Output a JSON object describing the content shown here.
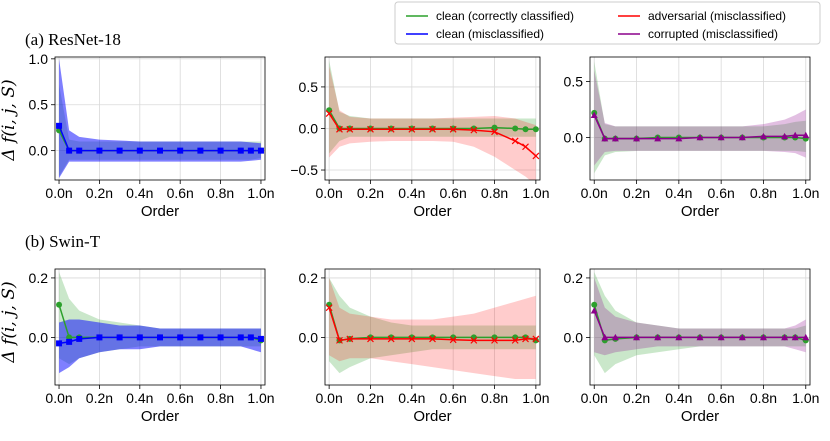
{
  "legend": {
    "entries": [
      {
        "label": "clean (correctly classified)",
        "color": "#2ca02c"
      },
      {
        "label": "adversarial (misclassified)",
        "color": "#ff0000"
      },
      {
        "label": "clean (misclassified)",
        "color": "#0000ff"
      },
      {
        "label": "corrupted (misclassified)",
        "color": "#8b008b"
      }
    ]
  },
  "rows": [
    {
      "title": "(a) ResNet-18"
    },
    {
      "title": "(b) Swin-T"
    }
  ],
  "ylabel": "Δ f(i, j, S)",
  "xlabel": "Order",
  "colors": {
    "clean_correct": "#2ca02c",
    "adversarial": "#ff0000",
    "clean_mis": "#0000ff",
    "corrupted": "#8b008b"
  },
  "chart_data": [
    {
      "type": "line",
      "id": "a-blue",
      "xlabel": "Order",
      "ylabel": "Δ f(i, j, S)",
      "xlim": [
        -0.02,
        1.02
      ],
      "ylim": [
        -0.32,
        1.02
      ],
      "xticks": [
        {
          "v": 0,
          "label": "0.0n"
        },
        {
          "v": 0.2,
          "label": "0.2n"
        },
        {
          "v": 0.4,
          "label": "0.4n"
        },
        {
          "v": 0.6,
          "label": "0.6n"
        },
        {
          "v": 0.8,
          "label": "0.8n"
        },
        {
          "v": 1.0,
          "label": "1.0n"
        }
      ],
      "yticks": [
        {
          "v": 0,
          "label": "0.0"
        },
        {
          "v": 0.5,
          "label": "0.5"
        },
        {
          "v": 1.0,
          "label": "1.0"
        }
      ],
      "x": [
        0,
        0.05,
        0.1,
        0.2,
        0.3,
        0.4,
        0.5,
        0.6,
        0.7,
        0.8,
        0.9,
        0.95,
        1.0
      ],
      "series": [
        {
          "name": "clean (correctly classified)",
          "key": "clean_correct",
          "marker": "o",
          "values": [
            0.22,
            0.0,
            0.0,
            0.0,
            0.0,
            0.0,
            0.0,
            0.0,
            0.0,
            0.0,
            0.0,
            0.0,
            0.0
          ],
          "lower": [
            -0.28,
            -0.1,
            -0.1,
            -0.1,
            -0.1,
            -0.1,
            -0.1,
            -0.1,
            -0.1,
            -0.1,
            -0.1,
            -0.1,
            -0.08
          ],
          "upper": [
            0.72,
            0.12,
            0.1,
            0.1,
            0.1,
            0.1,
            0.1,
            0.1,
            0.1,
            0.1,
            0.1,
            0.1,
            0.1
          ]
        },
        {
          "name": "clean (misclassified)",
          "key": "clean_mis",
          "marker": "s",
          "values": [
            0.27,
            0.0,
            0.0,
            0.0,
            0.0,
            0.0,
            0.0,
            0.0,
            0.0,
            0.0,
            0.0,
            0.0,
            0.0
          ],
          "lower": [
            -0.3,
            -0.12,
            -0.12,
            -0.12,
            -0.12,
            -0.12,
            -0.12,
            -0.12,
            -0.12,
            -0.12,
            -0.12,
            -0.11,
            -0.1
          ],
          "upper": [
            1.0,
            0.22,
            0.15,
            0.12,
            0.11,
            0.1,
            0.1,
            0.1,
            0.1,
            0.1,
            0.1,
            0.09,
            0.08
          ]
        }
      ]
    },
    {
      "type": "line",
      "id": "a-red",
      "xlabel": "Order",
      "xlim": [
        -0.02,
        1.02
      ],
      "ylim": [
        -0.62,
        0.86
      ],
      "xticks": [
        {
          "v": 0,
          "label": "0.0n"
        },
        {
          "v": 0.2,
          "label": "0.2n"
        },
        {
          "v": 0.4,
          "label": "0.4n"
        },
        {
          "v": 0.6,
          "label": "0.6n"
        },
        {
          "v": 0.8,
          "label": "0.8n"
        },
        {
          "v": 1.0,
          "label": "1.0n"
        }
      ],
      "yticks": [
        {
          "v": -0.5,
          "label": "−0.5"
        },
        {
          "v": 0,
          "label": "0.0"
        },
        {
          "v": 0.5,
          "label": "0.5"
        }
      ],
      "x": [
        0,
        0.05,
        0.1,
        0.2,
        0.3,
        0.4,
        0.5,
        0.6,
        0.7,
        0.8,
        0.9,
        0.95,
        1.0
      ],
      "series": [
        {
          "name": "clean (correctly classified)",
          "key": "clean_correct",
          "marker": "o",
          "values": [
            0.22,
            0.0,
            0.0,
            0.0,
            0.0,
            0.0,
            0.0,
            0.0,
            0.0,
            0.01,
            0.0,
            -0.01,
            -0.01
          ],
          "lower": [
            -0.3,
            -0.15,
            -0.1,
            -0.1,
            -0.1,
            -0.1,
            -0.1,
            -0.1,
            -0.1,
            -0.1,
            -0.1,
            -0.1,
            -0.1
          ],
          "upper": [
            0.82,
            0.2,
            0.15,
            0.12,
            0.12,
            0.12,
            0.12,
            0.12,
            0.12,
            0.12,
            0.12,
            0.12,
            0.12
          ]
        },
        {
          "name": "adversarial (misclassified)",
          "key": "adversarial",
          "marker": "x",
          "values": [
            0.18,
            -0.01,
            -0.01,
            -0.01,
            -0.01,
            -0.01,
            -0.01,
            -0.01,
            -0.02,
            -0.04,
            -0.15,
            -0.22,
            -0.33
          ],
          "lower": [
            -0.35,
            -0.22,
            -0.18,
            -0.16,
            -0.15,
            -0.15,
            -0.15,
            -0.16,
            -0.22,
            -0.34,
            -0.5,
            -0.58,
            -0.68
          ],
          "upper": [
            0.75,
            0.22,
            0.14,
            0.12,
            0.12,
            0.12,
            0.12,
            0.13,
            0.14,
            0.15,
            0.12,
            0.08,
            0.04
          ]
        }
      ]
    },
    {
      "type": "line",
      "id": "a-purple",
      "xlabel": "Order",
      "xlim": [
        -0.02,
        1.02
      ],
      "ylim": [
        -0.38,
        0.72
      ],
      "xticks": [
        {
          "v": 0,
          "label": "0.0n"
        },
        {
          "v": 0.2,
          "label": "0.2n"
        },
        {
          "v": 0.4,
          "label": "0.4n"
        },
        {
          "v": 0.6,
          "label": "0.6n"
        },
        {
          "v": 0.8,
          "label": "0.8n"
        },
        {
          "v": 1.0,
          "label": "1.0n"
        }
      ],
      "yticks": [
        {
          "v": 0,
          "label": "0.0"
        },
        {
          "v": 0.5,
          "label": "0.5"
        }
      ],
      "x": [
        0,
        0.05,
        0.1,
        0.2,
        0.3,
        0.4,
        0.5,
        0.6,
        0.7,
        0.8,
        0.9,
        0.95,
        1.0
      ],
      "series": [
        {
          "name": "clean (correctly classified)",
          "key": "clean_correct",
          "marker": "o",
          "values": [
            0.22,
            -0.01,
            -0.01,
            -0.01,
            0.0,
            0.0,
            0.0,
            0.0,
            0.0,
            0.0,
            0.0,
            0.0,
            -0.01
          ],
          "lower": [
            -0.32,
            -0.16,
            -0.13,
            -0.12,
            -0.12,
            -0.12,
            -0.12,
            -0.12,
            -0.12,
            -0.12,
            -0.12,
            -0.12,
            -0.13
          ],
          "upper": [
            0.68,
            0.12,
            0.1,
            0.1,
            0.1,
            0.1,
            0.1,
            0.1,
            0.1,
            0.1,
            0.12,
            0.14,
            0.15
          ]
        },
        {
          "name": "corrupted (misclassified)",
          "key": "corrupted",
          "marker": "^",
          "values": [
            0.2,
            -0.01,
            -0.01,
            -0.01,
            -0.01,
            -0.01,
            0.0,
            0.0,
            0.0,
            0.01,
            0.01,
            0.02,
            0.02
          ],
          "lower": [
            -0.25,
            -0.13,
            -0.12,
            -0.12,
            -0.12,
            -0.12,
            -0.12,
            -0.12,
            -0.12,
            -0.12,
            -0.13,
            -0.14,
            -0.18
          ],
          "upper": [
            0.6,
            0.13,
            0.1,
            0.1,
            0.1,
            0.1,
            0.1,
            0.1,
            0.1,
            0.12,
            0.16,
            0.2,
            0.25
          ]
        }
      ]
    },
    {
      "type": "line",
      "id": "b-blue",
      "xlabel": "Order",
      "ylabel": "Δ f(i, j, S)",
      "xlim": [
        -0.02,
        1.02
      ],
      "ylim": [
        -0.16,
        0.23
      ],
      "xticks": [
        {
          "v": 0,
          "label": "0.0n"
        },
        {
          "v": 0.2,
          "label": "0.2n"
        },
        {
          "v": 0.4,
          "label": "0.4n"
        },
        {
          "v": 0.6,
          "label": "0.6n"
        },
        {
          "v": 0.8,
          "label": "0.8n"
        },
        {
          "v": 1.0,
          "label": "1.0n"
        }
      ],
      "yticks": [
        {
          "v": 0,
          "label": "0.0"
        },
        {
          "v": 0.2,
          "label": "0.2"
        }
      ],
      "x": [
        0,
        0.05,
        0.1,
        0.2,
        0.3,
        0.4,
        0.5,
        0.6,
        0.7,
        0.8,
        0.9,
        0.95,
        1.0
      ],
      "series": [
        {
          "name": "clean (correctly classified)",
          "key": "clean_correct",
          "marker": "o",
          "values": [
            0.11,
            0.0,
            0.0,
            0.0,
            0.0,
            0.0,
            0.0,
            0.0,
            0.0,
            0.0,
            0.0,
            0.0,
            -0.01
          ],
          "lower": [
            -0.07,
            -0.09,
            -0.07,
            -0.05,
            -0.04,
            -0.03,
            -0.03,
            -0.03,
            -0.03,
            -0.03,
            -0.03,
            -0.03,
            -0.03
          ],
          "upper": [
            0.22,
            0.13,
            0.09,
            0.06,
            0.05,
            0.04,
            0.03,
            0.03,
            0.03,
            0.03,
            0.03,
            0.03,
            0.03
          ]
        },
        {
          "name": "clean (misclassified)",
          "key": "clean_mis",
          "marker": "s",
          "values": [
            -0.02,
            -0.015,
            -0.005,
            0.0,
            0.0,
            0.0,
            0.0,
            0.0,
            0.0,
            0.0,
            0.0,
            0.0,
            -0.005
          ],
          "lower": [
            -0.12,
            -0.1,
            -0.07,
            -0.05,
            -0.04,
            -0.04,
            -0.03,
            -0.03,
            -0.03,
            -0.03,
            -0.03,
            -0.04,
            -0.05
          ],
          "upper": [
            0.05,
            0.06,
            0.06,
            0.05,
            0.04,
            0.04,
            0.03,
            0.03,
            0.03,
            0.03,
            0.03,
            0.03,
            0.03
          ]
        }
      ]
    },
    {
      "type": "line",
      "id": "b-red",
      "xlabel": "Order",
      "xlim": [
        -0.02,
        1.02
      ],
      "ylim": [
        -0.16,
        0.23
      ],
      "xticks": [
        {
          "v": 0,
          "label": "0.0n"
        },
        {
          "v": 0.2,
          "label": "0.2n"
        },
        {
          "v": 0.4,
          "label": "0.4n"
        },
        {
          "v": 0.6,
          "label": "0.6n"
        },
        {
          "v": 0.8,
          "label": "0.8n"
        },
        {
          "v": 1.0,
          "label": "1.0n"
        }
      ],
      "yticks": [
        {
          "v": 0,
          "label": "0.0"
        },
        {
          "v": 0.2,
          "label": "0.2"
        }
      ],
      "x": [
        0,
        0.05,
        0.1,
        0.2,
        0.3,
        0.4,
        0.5,
        0.6,
        0.7,
        0.8,
        0.9,
        0.95,
        1.0
      ],
      "series": [
        {
          "name": "clean (correctly classified)",
          "key": "clean_correct",
          "marker": "o",
          "values": [
            0.11,
            -0.01,
            -0.005,
            0.0,
            0.0,
            0.0,
            0.0,
            0.0,
            0.0,
            0.0,
            0.0,
            0.0,
            -0.01
          ],
          "lower": [
            -0.08,
            -0.12,
            -0.1,
            -0.07,
            -0.06,
            -0.05,
            -0.04,
            -0.04,
            -0.04,
            -0.04,
            -0.04,
            -0.04,
            -0.04
          ],
          "upper": [
            0.2,
            0.14,
            0.1,
            0.07,
            0.05,
            0.04,
            0.04,
            0.04,
            0.04,
            0.04,
            0.04,
            0.04,
            0.04
          ]
        },
        {
          "name": "adversarial (misclassified)",
          "key": "adversarial",
          "marker": "x",
          "values": [
            0.1,
            -0.01,
            -0.005,
            -0.005,
            -0.005,
            -0.005,
            -0.005,
            -0.008,
            -0.01,
            -0.01,
            -0.01,
            -0.005,
            -0.005
          ],
          "lower": [
            -0.06,
            -0.08,
            -0.07,
            -0.07,
            -0.08,
            -0.09,
            -0.1,
            -0.11,
            -0.12,
            -0.13,
            -0.14,
            -0.14,
            -0.14
          ],
          "upper": [
            0.2,
            0.1,
            0.08,
            0.07,
            0.06,
            0.06,
            0.06,
            0.07,
            0.08,
            0.1,
            0.12,
            0.13,
            0.14
          ]
        }
      ]
    },
    {
      "type": "line",
      "id": "b-purple",
      "xlabel": "Order",
      "xlim": [
        -0.02,
        1.02
      ],
      "ylim": [
        -0.16,
        0.23
      ],
      "xticks": [
        {
          "v": 0,
          "label": "0.0n"
        },
        {
          "v": 0.2,
          "label": "0.2n"
        },
        {
          "v": 0.4,
          "label": "0.4n"
        },
        {
          "v": 0.6,
          "label": "0.6n"
        },
        {
          "v": 0.8,
          "label": "0.8n"
        },
        {
          "v": 1.0,
          "label": "1.0n"
        }
      ],
      "yticks": [
        {
          "v": 0,
          "label": "0.0"
        },
        {
          "v": 0.2,
          "label": "0.2"
        }
      ],
      "x": [
        0,
        0.05,
        0.1,
        0.2,
        0.3,
        0.4,
        0.5,
        0.6,
        0.7,
        0.8,
        0.9,
        0.95,
        1.0
      ],
      "series": [
        {
          "name": "clean (correctly classified)",
          "key": "clean_correct",
          "marker": "o",
          "values": [
            0.11,
            -0.01,
            -0.005,
            0.0,
            0.0,
            0.0,
            0.0,
            0.0,
            0.0,
            0.0,
            0.0,
            0.0,
            -0.01
          ],
          "lower": [
            -0.06,
            -0.12,
            -0.09,
            -0.06,
            -0.05,
            -0.04,
            -0.03,
            -0.03,
            -0.03,
            -0.03,
            -0.03,
            -0.03,
            -0.03
          ],
          "upper": [
            0.22,
            0.14,
            0.09,
            0.05,
            0.04,
            0.03,
            0.03,
            0.03,
            0.03,
            0.03,
            0.03,
            0.03,
            0.04
          ]
        },
        {
          "name": "corrupted (misclassified)",
          "key": "corrupted",
          "marker": "^",
          "values": [
            0.09,
            0.0,
            0.0,
            0.0,
            0.0,
            0.0,
            0.0,
            0.0,
            0.0,
            0.0,
            0.0,
            0.0,
            0.0
          ],
          "lower": [
            -0.05,
            -0.06,
            -0.05,
            -0.04,
            -0.03,
            -0.03,
            -0.03,
            -0.03,
            -0.03,
            -0.03,
            -0.03,
            -0.04,
            -0.05
          ],
          "upper": [
            0.2,
            0.1,
            0.07,
            0.05,
            0.04,
            0.03,
            0.03,
            0.03,
            0.03,
            0.03,
            0.03,
            0.04,
            0.06
          ]
        }
      ]
    }
  ]
}
